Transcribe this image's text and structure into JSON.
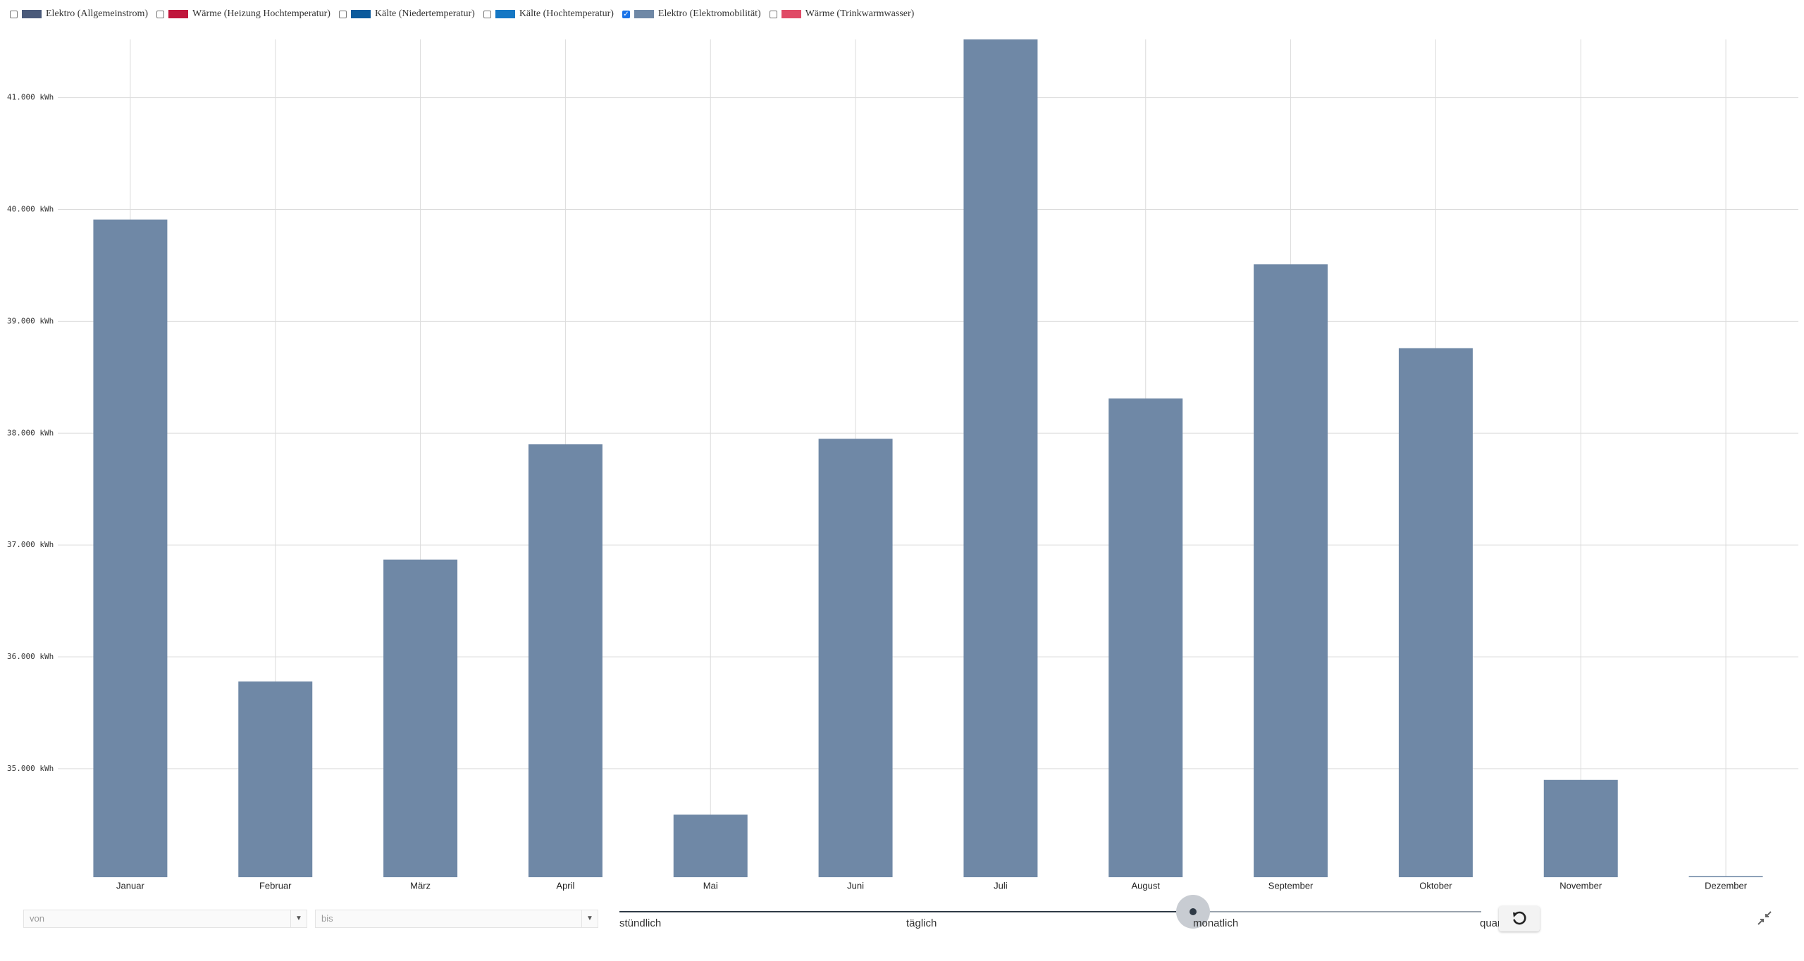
{
  "chart_data": {
    "type": "bar",
    "series": [
      {
        "name": "Elektro (Allgemeinstrom)",
        "color": "#4a5a7a",
        "checked": false
      },
      {
        "name": "Wärme (Heizung Hochtemperatur)",
        "color": "#c0163c",
        "checked": false
      },
      {
        "name": "Kälte (Niedertemperatur)",
        "color": "#0b5a9c",
        "checked": false
      },
      {
        "name": "Kälte (Hochtemperatur)",
        "color": "#1577c4",
        "checked": false
      },
      {
        "name": "Elektro (Elektromobilität)",
        "color": "#6f88a6",
        "checked": true,
        "values": [
          39910,
          35780,
          36870,
          37900,
          34590,
          37950,
          41520,
          38310,
          39510,
          38760,
          34900,
          34040
        ]
      },
      {
        "name": "Wärme (Trinkwarmwasser)",
        "color": "#e04a66",
        "checked": false
      }
    ],
    "categories": [
      "Januar",
      "Februar",
      "März",
      "April",
      "Mai",
      "Juni",
      "Juli",
      "August",
      "September",
      "Oktober",
      "November",
      "Dezember"
    ],
    "ylim": [
      34030,
      41520
    ],
    "yticks": [
      {
        "value": 35000,
        "label": "35.000 kWh"
      },
      {
        "value": 36000,
        "label": "36.000 kWh"
      },
      {
        "value": 37000,
        "label": "37.000 kWh"
      },
      {
        "value": 38000,
        "label": "38.000 kWh"
      },
      {
        "value": 39000,
        "label": "39.000 kWh"
      },
      {
        "value": 40000,
        "label": "40.000 kWh"
      },
      {
        "value": 41000,
        "label": "41.000 kWh"
      }
    ],
    "grid": true
  },
  "controls": {
    "from_placeholder": "von",
    "to_placeholder": "bis",
    "resolutions": [
      "stündlich",
      "täglich",
      "monatlich",
      "quar"
    ],
    "selected_resolution": 2
  }
}
